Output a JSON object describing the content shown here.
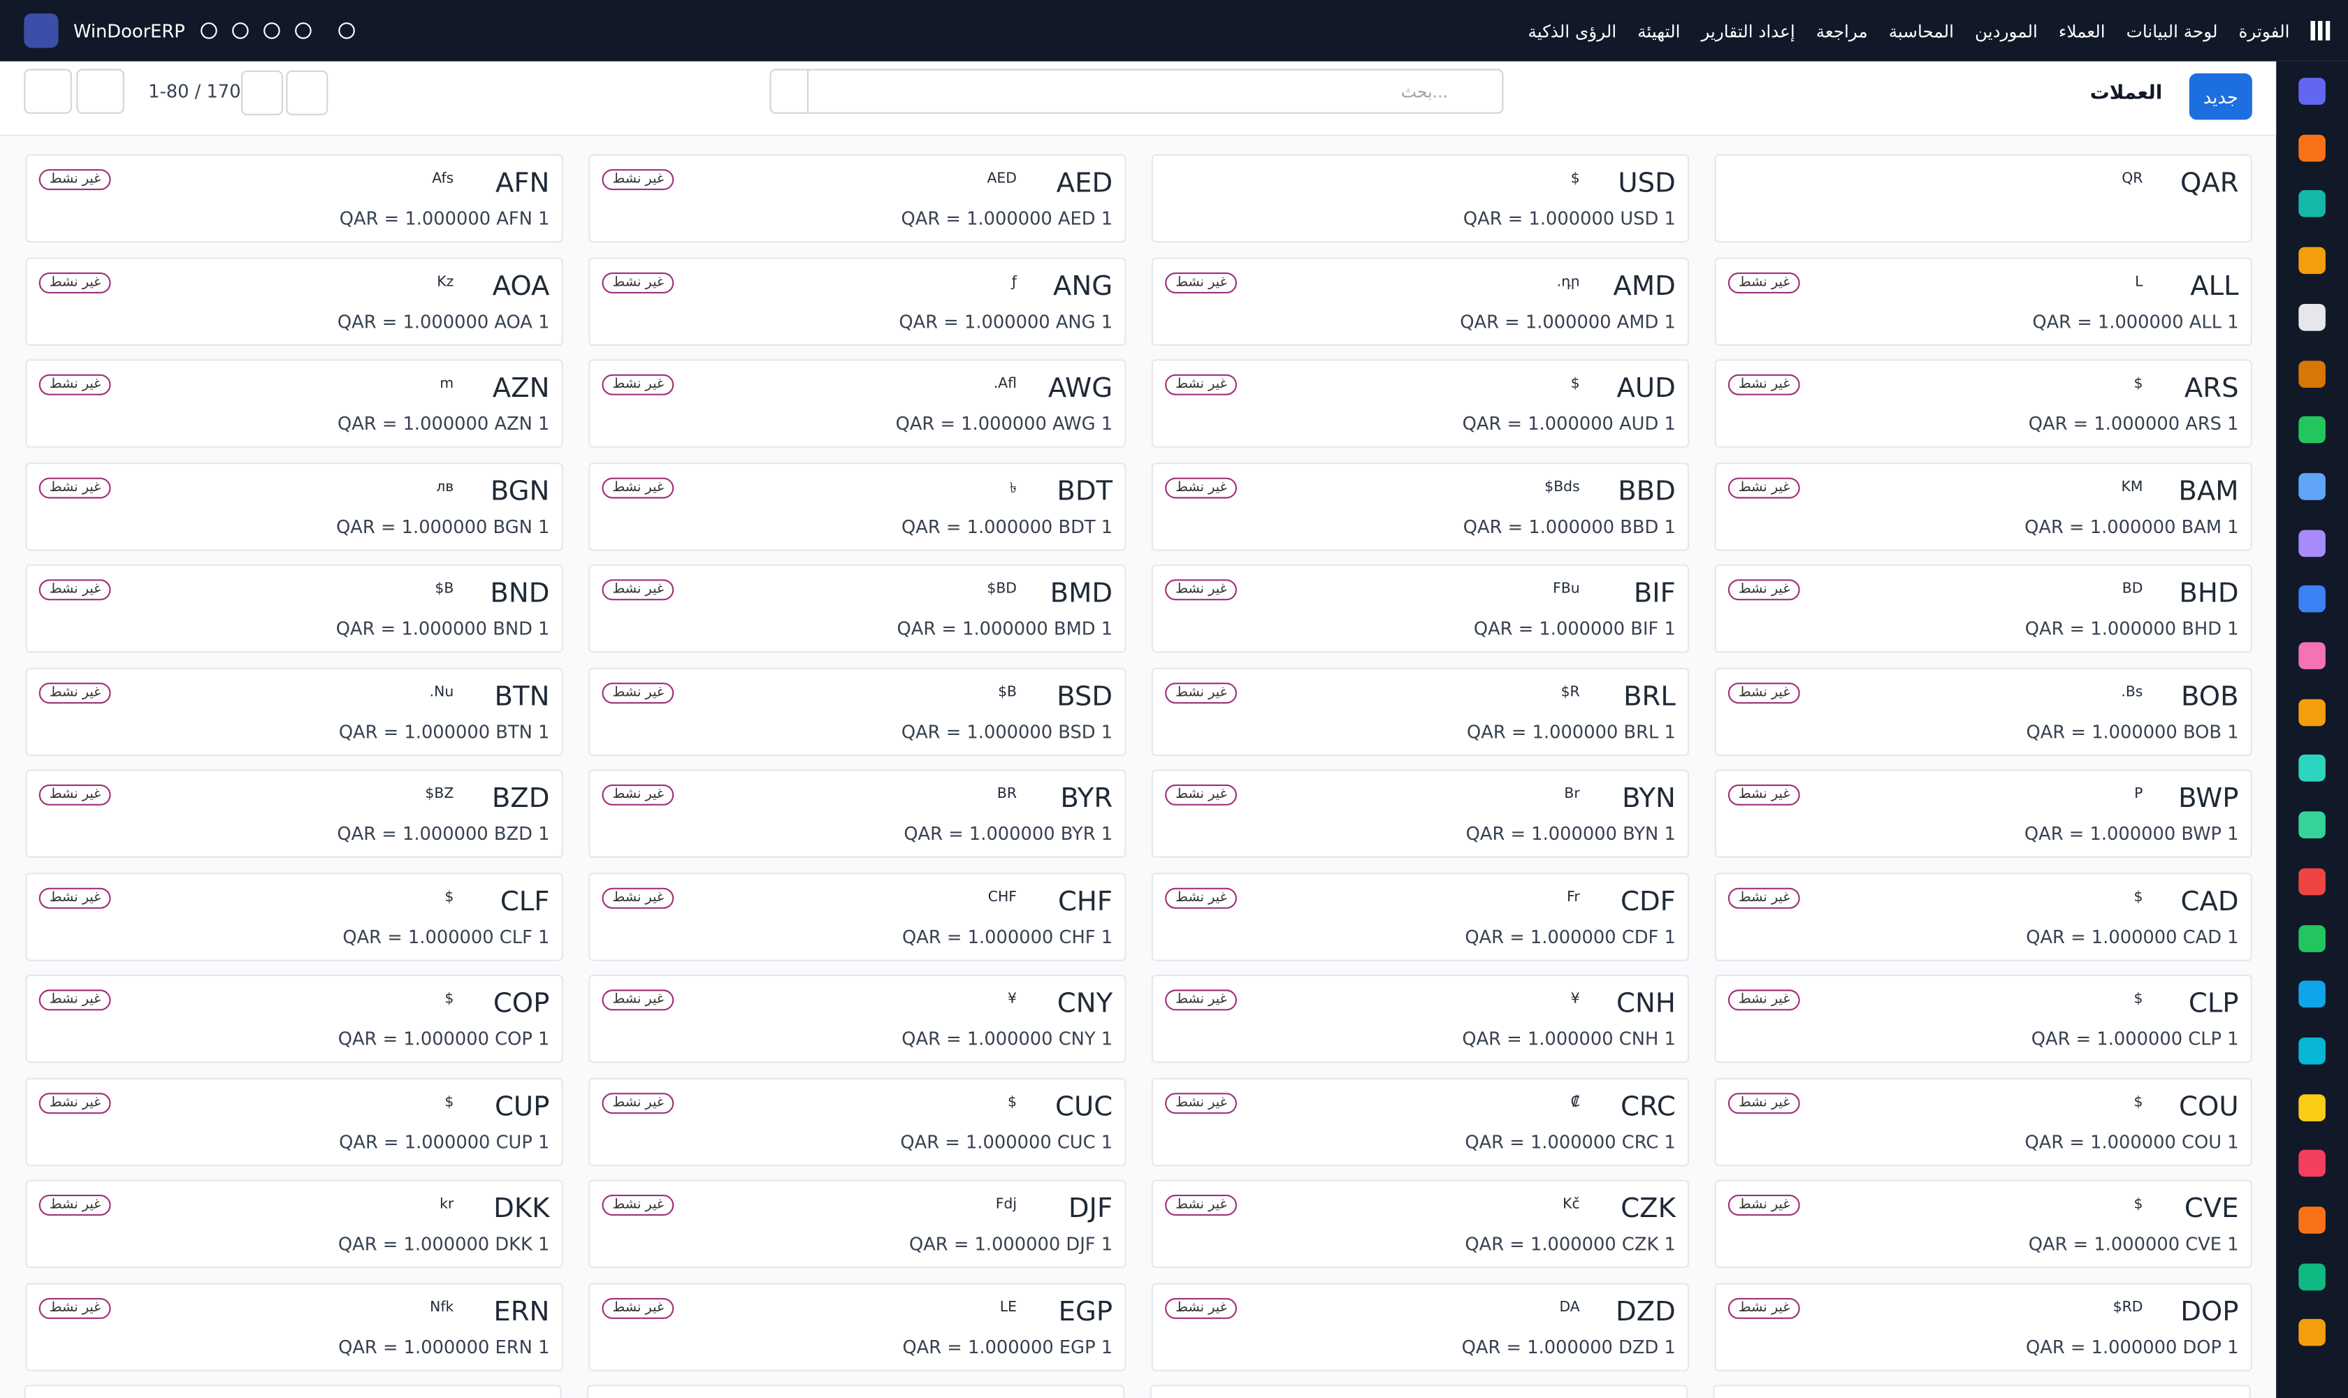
{
  "app": {
    "brand": "WinDoorERP",
    "menu": [
      "الفوترة",
      "لوحة البيانات",
      "العملاء",
      "الموردين",
      "المحاسبة",
      "مراجعة",
      "إعداد التقارير",
      "التهيئة",
      "الرؤى الذكية"
    ]
  },
  "control": {
    "new_button": "جديد",
    "title": "العملات",
    "search_placeholder": "بحث...",
    "pager": "1-80 / 170"
  },
  "cards": [
    {
      "code": "QAR",
      "symbol": "QR"
    },
    {
      "code": "USD",
      "symbol": "$",
      "rate": "QAR = 1.000000 USD 1"
    },
    {
      "code": "AED",
      "symbol": "AED",
      "rate": "QAR = 1.000000 AED 1",
      "status": "غير نشط"
    },
    {
      "code": "AFN",
      "symbol": "Afs",
      "rate": "QAR = 1.000000 AFN 1",
      "status": "غير نشط"
    },
    {
      "code": "ALL",
      "symbol": "L",
      "rate": "QAR = 1.000000 ALL 1",
      "status": "غير نشط"
    },
    {
      "code": "AMD",
      "symbol": ".դր",
      "rate": "QAR = 1.000000 AMD 1",
      "status": "غير نشط"
    },
    {
      "code": "ANG",
      "symbol": "ƒ",
      "rate": "QAR = 1.000000 ANG 1",
      "status": "غير نشط"
    },
    {
      "code": "AOA",
      "symbol": "Kz",
      "rate": "QAR = 1.000000 AOA 1",
      "status": "غير نشط"
    },
    {
      "code": "ARS",
      "symbol": "$",
      "rate": "QAR = 1.000000 ARS 1",
      "status": "غير نشط"
    },
    {
      "code": "AUD",
      "symbol": "$",
      "rate": "QAR = 1.000000 AUD 1",
      "status": "غير نشط"
    },
    {
      "code": "AWG",
      "symbol": ".Afl",
      "rate": "QAR = 1.000000 AWG 1",
      "status": "غير نشط"
    },
    {
      "code": "AZN",
      "symbol": "m",
      "rate": "QAR = 1.000000 AZN 1",
      "status": "غير نشط"
    },
    {
      "code": "BAM",
      "symbol": "KM",
      "rate": "QAR = 1.000000 BAM 1",
      "status": "غير نشط"
    },
    {
      "code": "BBD",
      "symbol": "$Bds",
      "rate": "QAR = 1.000000 BBD 1",
      "status": "غير نشط"
    },
    {
      "code": "BDT",
      "symbol": "৳",
      "rate": "QAR = 1.000000 BDT 1",
      "status": "غير نشط"
    },
    {
      "code": "BGN",
      "symbol": "лв",
      "rate": "QAR = 1.000000 BGN 1",
      "status": "غير نشط"
    },
    {
      "code": "BHD",
      "symbol": "BD",
      "rate": "QAR = 1.000000 BHD 1",
      "status": "غير نشط"
    },
    {
      "code": "BIF",
      "symbol": "FBu",
      "rate": "QAR = 1.000000 BIF 1",
      "status": "غير نشط"
    },
    {
      "code": "BMD",
      "symbol": "$BD",
      "rate": "QAR = 1.000000 BMD 1",
      "status": "غير نشط"
    },
    {
      "code": "BND",
      "symbol": "$B",
      "rate": "QAR = 1.000000 BND 1",
      "status": "غير نشط"
    },
    {
      "code": "BOB",
      "symbol": ".Bs",
      "rate": "QAR = 1.000000 BOB 1",
      "status": "غير نشط"
    },
    {
      "code": "BRL",
      "symbol": "$R",
      "rate": "QAR = 1.000000 BRL 1",
      "status": "غير نشط"
    },
    {
      "code": "BSD",
      "symbol": "$B",
      "rate": "QAR = 1.000000 BSD 1",
      "status": "غير نشط"
    },
    {
      "code": "BTN",
      "symbol": ".Nu",
      "rate": "QAR = 1.000000 BTN 1",
      "status": "غير نشط"
    },
    {
      "code": "BWP",
      "symbol": "P",
      "rate": "QAR = 1.000000 BWP 1",
      "status": "غير نشط"
    },
    {
      "code": "BYN",
      "symbol": "Br",
      "rate": "QAR = 1.000000 BYN 1",
      "status": "غير نشط"
    },
    {
      "code": "BYR",
      "symbol": "BR",
      "rate": "QAR = 1.000000 BYR 1",
      "status": "غير نشط"
    },
    {
      "code": "BZD",
      "symbol": "$BZ",
      "rate": "QAR = 1.000000 BZD 1",
      "status": "غير نشط"
    },
    {
      "code": "CAD",
      "symbol": "$",
      "rate": "QAR = 1.000000 CAD 1",
      "status": "غير نشط"
    },
    {
      "code": "CDF",
      "symbol": "Fr",
      "rate": "QAR = 1.000000 CDF 1",
      "status": "غير نشط"
    },
    {
      "code": "CHF",
      "symbol": "CHF",
      "rate": "QAR = 1.000000 CHF 1",
      "status": "غير نشط"
    },
    {
      "code": "CLF",
      "symbol": "$",
      "rate": "QAR = 1.000000 CLF 1",
      "status": "غير نشط"
    },
    {
      "code": "CLP",
      "symbol": "$",
      "rate": "QAR = 1.000000 CLP 1",
      "status": "غير نشط"
    },
    {
      "code": "CNH",
      "symbol": "¥",
      "rate": "QAR = 1.000000 CNH 1",
      "status": "غير نشط"
    },
    {
      "code": "CNY",
      "symbol": "¥",
      "rate": "QAR = 1.000000 CNY 1",
      "status": "غير نشط"
    },
    {
      "code": "COP",
      "symbol": "$",
      "rate": "QAR = 1.000000 COP 1",
      "status": "غير نشط"
    },
    {
      "code": "COU",
      "symbol": "$",
      "rate": "QAR = 1.000000 COU 1",
      "status": "غير نشط"
    },
    {
      "code": "CRC",
      "symbol": "₡",
      "rate": "QAR = 1.000000 CRC 1",
      "status": "غير نشط"
    },
    {
      "code": "CUC",
      "symbol": "$",
      "rate": "QAR = 1.000000 CUC 1",
      "status": "غير نشط"
    },
    {
      "code": "CUP",
      "symbol": "$",
      "rate": "QAR = 1.000000 CUP 1",
      "status": "غير نشط"
    },
    {
      "code": "CVE",
      "symbol": "$",
      "rate": "QAR = 1.000000 CVE 1",
      "status": "غير نشط"
    },
    {
      "code": "CZK",
      "symbol": "Kč",
      "rate": "QAR = 1.000000 CZK 1",
      "status": "غير نشط"
    },
    {
      "code": "DJF",
      "symbol": "Fdj",
      "rate": "QAR = 1.000000 DJF 1",
      "status": "غير نشط"
    },
    {
      "code": "DKK",
      "symbol": "kr",
      "rate": "QAR = 1.000000 DKK 1",
      "status": "غير نشط"
    },
    {
      "code": "DOP",
      "symbol": "$RD",
      "rate": "QAR = 1.000000 DOP 1",
      "status": "غير نشط"
    },
    {
      "code": "DZD",
      "symbol": "DA",
      "rate": "QAR = 1.000000 DZD 1",
      "status": "غير نشط"
    },
    {
      "code": "EGP",
      "symbol": "LE",
      "rate": "QAR = 1.000000 EGP 1",
      "status": "غير نشط"
    },
    {
      "code": "ERN",
      "symbol": "Nfk",
      "rate": "QAR = 1.000000 ERN 1",
      "status": "غير نشط"
    }
  ]
}
